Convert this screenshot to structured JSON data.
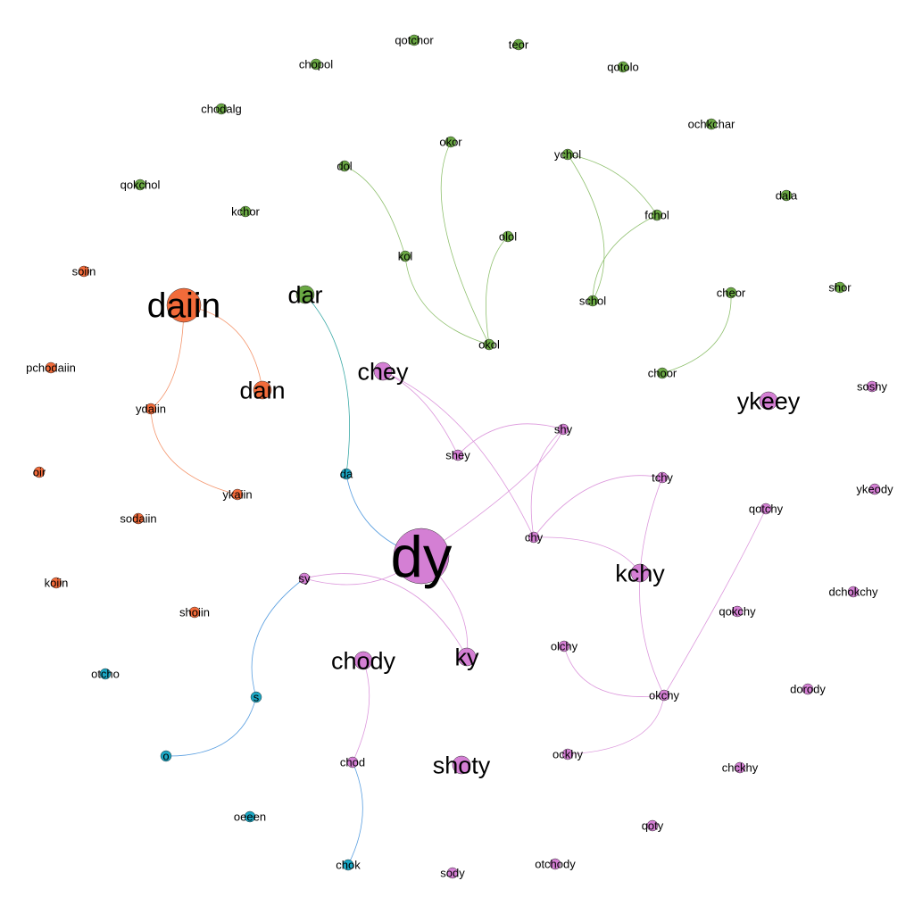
{
  "colors": {
    "orange": "#f26b3a",
    "green": "#6aa843",
    "pink": "#d47fd4",
    "cyan": "#1ba7c4"
  },
  "nodes": [
    {
      "id": "qotchor",
      "group": "green",
      "weight": 1
    },
    {
      "id": "teor",
      "group": "green",
      "weight": 1
    },
    {
      "id": "chopol",
      "group": "green",
      "weight": 1
    },
    {
      "id": "qotolo",
      "group": "green",
      "weight": 1
    },
    {
      "id": "chodalg",
      "group": "green",
      "weight": 1
    },
    {
      "id": "ochkchar",
      "group": "green",
      "weight": 1
    },
    {
      "id": "okor",
      "group": "green",
      "weight": 1
    },
    {
      "id": "ychol",
      "group": "green",
      "weight": 1
    },
    {
      "id": "dol",
      "group": "green",
      "weight": 1
    },
    {
      "id": "qokchol",
      "group": "green",
      "weight": 1
    },
    {
      "id": "dala",
      "group": "green",
      "weight": 1
    },
    {
      "id": "kchor",
      "group": "green",
      "weight": 1
    },
    {
      "id": "fchol",
      "group": "green",
      "weight": 1
    },
    {
      "id": "olol",
      "group": "green",
      "weight": 1
    },
    {
      "id": "kol",
      "group": "green",
      "weight": 1
    },
    {
      "id": "shor",
      "group": "green",
      "weight": 1
    },
    {
      "id": "cheor",
      "group": "green",
      "weight": 1
    },
    {
      "id": "schol",
      "group": "green",
      "weight": 1
    },
    {
      "id": "dar",
      "group": "green",
      "weight": 3
    },
    {
      "id": "okol",
      "group": "green",
      "weight": 1
    },
    {
      "id": "choor",
      "group": "green",
      "weight": 1
    },
    {
      "id": "soiin",
      "group": "orange",
      "weight": 1
    },
    {
      "id": "daiin",
      "group": "orange",
      "weight": 5
    },
    {
      "id": "pchodaiin",
      "group": "orange",
      "weight": 1
    },
    {
      "id": "dain",
      "group": "orange",
      "weight": 3
    },
    {
      "id": "ydaiin",
      "group": "orange",
      "weight": 1
    },
    {
      "id": "oir",
      "group": "orange",
      "weight": 1
    },
    {
      "id": "ykaiin",
      "group": "orange",
      "weight": 1
    },
    {
      "id": "sodaiin",
      "group": "orange",
      "weight": 1
    },
    {
      "id": "koiin",
      "group": "orange",
      "weight": 1
    },
    {
      "id": "shoiin",
      "group": "orange",
      "weight": 1
    },
    {
      "id": "chey",
      "group": "pink",
      "weight": 3
    },
    {
      "id": "ykeey",
      "group": "pink",
      "weight": 3
    },
    {
      "id": "soshy",
      "group": "pink",
      "weight": 1
    },
    {
      "id": "shy",
      "group": "pink",
      "weight": 1
    },
    {
      "id": "shey",
      "group": "pink",
      "weight": 1
    },
    {
      "id": "tchy",
      "group": "pink",
      "weight": 1
    },
    {
      "id": "ykeody",
      "group": "pink",
      "weight": 1
    },
    {
      "id": "qotchy",
      "group": "pink",
      "weight": 1
    },
    {
      "id": "chy",
      "group": "pink",
      "weight": 1
    },
    {
      "id": "dy",
      "group": "pink",
      "weight": 6
    },
    {
      "id": "kchy",
      "group": "pink",
      "weight": 3
    },
    {
      "id": "sy",
      "group": "pink",
      "weight": 1
    },
    {
      "id": "dchokchy",
      "group": "pink",
      "weight": 1
    },
    {
      "id": "qokchy",
      "group": "pink",
      "weight": 1
    },
    {
      "id": "olchy",
      "group": "pink",
      "weight": 1
    },
    {
      "id": "chody",
      "group": "pink",
      "weight": 3
    },
    {
      "id": "ky",
      "group": "pink",
      "weight": 3
    },
    {
      "id": "dorody",
      "group": "pink",
      "weight": 1
    },
    {
      "id": "okchy",
      "group": "pink",
      "weight": 1
    },
    {
      "id": "chod",
      "group": "pink",
      "weight": 1
    },
    {
      "id": "ockhy",
      "group": "pink",
      "weight": 1
    },
    {
      "id": "shoty",
      "group": "pink",
      "weight": 3
    },
    {
      "id": "chckhy",
      "group": "pink",
      "weight": 1
    },
    {
      "id": "qoty",
      "group": "pink",
      "weight": 1
    },
    {
      "id": "sody",
      "group": "pink",
      "weight": 1
    },
    {
      "id": "otchody",
      "group": "pink",
      "weight": 1
    },
    {
      "id": "da",
      "group": "cyan",
      "weight": 1
    },
    {
      "id": "otcho",
      "group": "cyan",
      "weight": 1
    },
    {
      "id": "s",
      "group": "cyan",
      "weight": 1
    },
    {
      "id": "o",
      "group": "cyan",
      "weight": 1
    },
    {
      "id": "oeeen",
      "group": "cyan",
      "weight": 1
    },
    {
      "id": "chok",
      "group": "cyan",
      "weight": 1
    }
  ],
  "edges": [
    {
      "from": "daiin",
      "to": "dain",
      "color": "orange"
    },
    {
      "from": "daiin",
      "to": "ydaiin",
      "color": "orange"
    },
    {
      "from": "ydaiin",
      "to": "ykaiin",
      "color": "orange"
    },
    {
      "from": "dol",
      "to": "kol",
      "color": "green"
    },
    {
      "from": "kol",
      "to": "okol",
      "color": "green"
    },
    {
      "from": "okor",
      "to": "okol",
      "color": "green"
    },
    {
      "from": "olol",
      "to": "okol",
      "color": "green"
    },
    {
      "from": "ychol",
      "to": "fchol",
      "color": "green"
    },
    {
      "from": "ychol",
      "to": "schol",
      "color": "green"
    },
    {
      "from": "fchol",
      "to": "schol",
      "color": "green"
    },
    {
      "from": "cheor",
      "to": "choor",
      "color": "green"
    },
    {
      "from": "dar",
      "to": "da",
      "color": "teal"
    },
    {
      "from": "da",
      "to": "dy",
      "color": "blue"
    },
    {
      "from": "chey",
      "to": "shey",
      "color": "pink"
    },
    {
      "from": "chey",
      "to": "chy",
      "color": "pink"
    },
    {
      "from": "shey",
      "to": "shy",
      "color": "pink"
    },
    {
      "from": "shy",
      "to": "chy",
      "color": "pink"
    },
    {
      "from": "shy",
      "to": "dy",
      "color": "pink"
    },
    {
      "from": "chy",
      "to": "tchy",
      "color": "pink"
    },
    {
      "from": "chy",
      "to": "kchy",
      "color": "pink"
    },
    {
      "from": "tchy",
      "to": "okchy",
      "color": "pink"
    },
    {
      "from": "qotchy",
      "to": "okchy",
      "color": "pink"
    },
    {
      "from": "olchy",
      "to": "okchy",
      "color": "pink"
    },
    {
      "from": "okchy",
      "to": "ockhy",
      "color": "pink"
    },
    {
      "from": "dy",
      "to": "sy",
      "color": "pink"
    },
    {
      "from": "dy",
      "to": "ky",
      "color": "pink"
    },
    {
      "from": "sy",
      "to": "ky",
      "color": "pink"
    },
    {
      "from": "sy",
      "to": "s",
      "color": "blue"
    },
    {
      "from": "s",
      "to": "o",
      "color": "blue"
    },
    {
      "from": "chody",
      "to": "chod",
      "color": "pink"
    },
    {
      "from": "chod",
      "to": "chok",
      "color": "blue"
    }
  ]
}
